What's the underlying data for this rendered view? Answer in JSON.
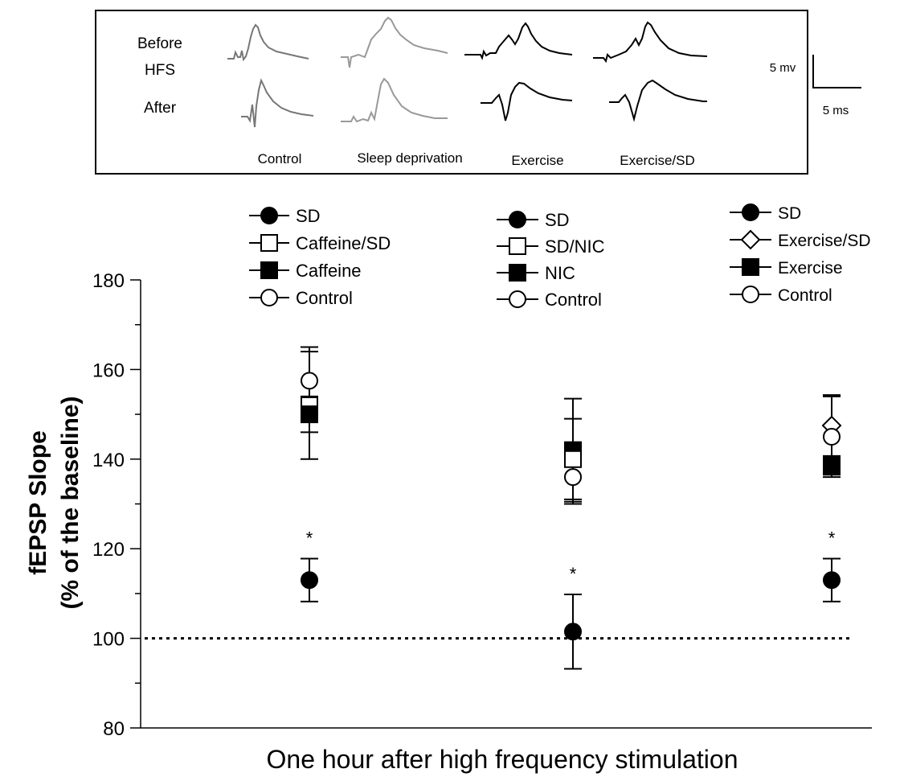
{
  "inset": {
    "row_labels": [
      "Before",
      "HFS",
      "After"
    ],
    "condition_labels": [
      "Control",
      "Sleep deprivation",
      "Exercise",
      "Exercise/SD"
    ],
    "scale_bar": {
      "voltage_label": "5 mv",
      "time_label": "5 ms"
    }
  },
  "chart_data": {
    "type": "scatter",
    "title": "",
    "xlabel": "One hour after high frequency stimulation",
    "ylabel": [
      "fEPSP Slope",
      "(% of the baseline)"
    ],
    "ylim": [
      80,
      180
    ],
    "yticks": [
      80,
      100,
      120,
      140,
      160,
      180
    ],
    "grid": false,
    "baseline": {
      "value": 100,
      "style": "dotted"
    },
    "significance_marker": "*",
    "groups": [
      {
        "legend": [
          {
            "label": "SD",
            "marker": "filled-circle"
          },
          {
            "label": "Caffeine/SD",
            "marker": "open-square"
          },
          {
            "label": "Caffeine",
            "marker": "filled-square"
          },
          {
            "label": "Control",
            "marker": "open-circle"
          }
        ],
        "points": [
          {
            "series": "Control",
            "marker": "open-circle",
            "value": 157.5,
            "error": 7.5
          },
          {
            "series": "Caffeine/SD",
            "marker": "open-square",
            "value": 152,
            "error": 12
          },
          {
            "series": "Caffeine",
            "marker": "filled-square",
            "value": 150,
            "error": 4
          },
          {
            "series": "SD",
            "marker": "filled-circle",
            "value": 113,
            "error": 4.8,
            "significant": true
          }
        ]
      },
      {
        "legend": [
          {
            "label": "SD",
            "marker": "filled-circle"
          },
          {
            "label": "SD/NIC",
            "marker": "open-square"
          },
          {
            "label": "NIC",
            "marker": "filled-square"
          },
          {
            "label": "Control",
            "marker": "open-circle"
          }
        ],
        "points": [
          {
            "series": "NIC",
            "marker": "filled-square",
            "value": 142,
            "error": 11.5
          },
          {
            "series": "SD/NIC",
            "marker": "open-square",
            "value": 140,
            "error": 9
          },
          {
            "series": "Control",
            "marker": "open-circle",
            "value": 136,
            "error": 6
          },
          {
            "series": "SD",
            "marker": "filled-circle",
            "value": 101.5,
            "error": 8.3,
            "significant": true
          }
        ]
      },
      {
        "legend": [
          {
            "label": "SD",
            "marker": "filled-circle"
          },
          {
            "label": "Exercise/SD",
            "marker": "open-diamond"
          },
          {
            "label": "Exercise",
            "marker": "filled-square"
          },
          {
            "label": "Control",
            "marker": "open-circle"
          }
        ],
        "points": [
          {
            "series": "Exercise/SD",
            "marker": "open-diamond",
            "value": 147.5,
            "error": 6.8
          },
          {
            "series": "Control",
            "marker": "open-circle",
            "value": 145,
            "error": 9
          },
          {
            "series": "Exercise",
            "marker": "filled-square",
            "value": 138.5,
            "error": 2
          },
          {
            "series": "SD",
            "marker": "filled-circle",
            "value": 113,
            "error": 4.8,
            "significant": true
          }
        ]
      }
    ]
  }
}
